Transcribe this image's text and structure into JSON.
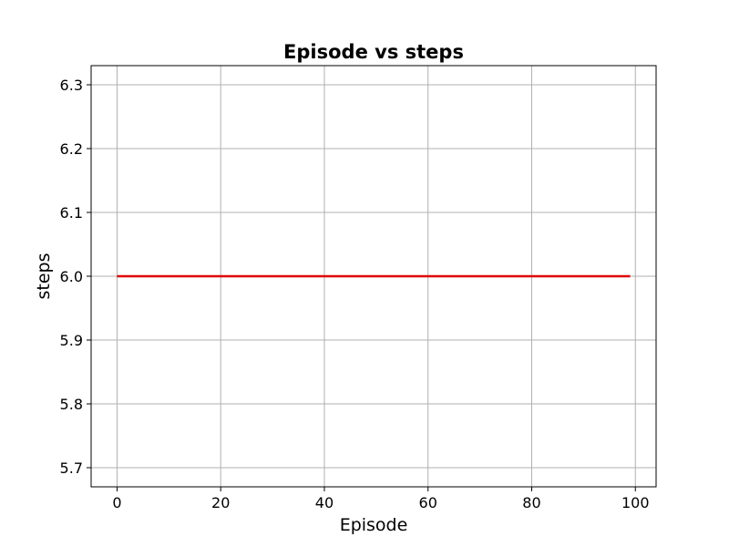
{
  "chart_data": {
    "type": "line",
    "title": "Episode vs steps",
    "xlabel": "Episode",
    "ylabel": "steps",
    "xlim": [
      -5,
      104
    ],
    "ylim": [
      5.67,
      6.33
    ],
    "xticks": [
      0,
      20,
      40,
      60,
      80,
      100
    ],
    "xtick_labels": [
      "0",
      "20",
      "40",
      "60",
      "80",
      "100"
    ],
    "yticks": [
      5.7,
      5.8,
      5.9,
      6.0,
      6.1,
      6.2,
      6.3
    ],
    "ytick_labels": [
      "5.7",
      "5.8",
      "5.9",
      "6.0",
      "6.1",
      "6.2",
      "6.3"
    ],
    "grid": true,
    "legend": "none",
    "series": [
      {
        "color": "#e00000",
        "x": [
          0,
          99
        ],
        "values": [
          6.0,
          6.0
        ]
      }
    ]
  }
}
